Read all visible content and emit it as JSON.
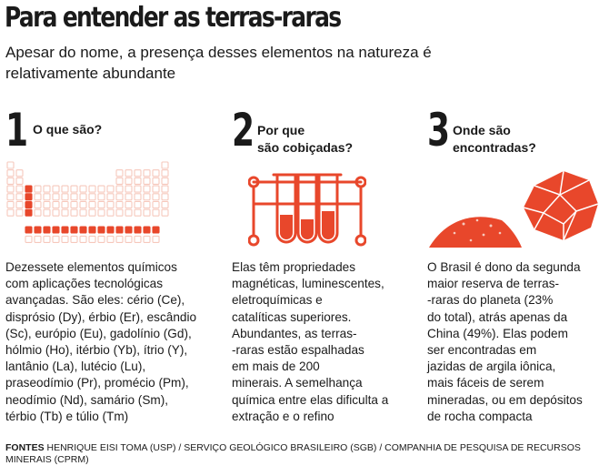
{
  "title": "Para entender as terras-raras",
  "subtitle": "Apesar do nome, a presença desses elementos na natureza é relativamente abundante",
  "sections": [
    {
      "number": "1",
      "question": "O que são?",
      "text": "Dezessete elementos químicos\ncom aplicações tecnológicas\navançadas. São eles: cério (Ce),\ndisprósio (Dy), érbio (Er), escândio\n(Sc), európio (Eu), gadolínio (Gd),\nhólmio (Ho), itérbio (Yb), ítrio (Y),\nlantânio (La), lutécio (Lu),\npraseodímio (Pr), promécio (Pm),\nneodímio (Nd), samário (Sm),\ntérbio (Tb) e túlio (Tm)",
      "icon": "periodic-table-icon"
    },
    {
      "number": "2",
      "question": "Por que\nsão cobiçadas?",
      "text": "Elas têm propriedades\nmagnéticas, luminescentes,\neletroquímicas e\ncatalíticas superiores.\nAbundantes, as terras-\n-raras estão espalhadas\nem mais de 200\nminerais. A semelhança\nquímica entre elas dificulta a\nextração e o refino",
      "icon": "test-tubes-icon"
    },
    {
      "number": "3",
      "question": "Onde são\nencontradas?",
      "text": "O Brasil é dono da segunda\nmaior reserva de terras-\n-raras do planeta (23%\ndo total), atrás apenas da\nChina (49%). Elas podem\nser encontradas em\njazidas de argila iônica,\nmais fáceis de serem\nmineradas, ou em depósitos\nde rocha compacta",
      "icon": "clay-and-rock-icon"
    }
  ],
  "sources_label": "FONTES",
  "sources_text": "HENRIQUE EISI TOMA (USP) / SERVIÇO GEOLÓGICO BRASILEIRO (SGB) / COMPANHIA DE PESQUISA DE RECURSOS MINERAIS (CPRM)",
  "colors": {
    "accent": "#e8472b",
    "accent_light": "#f6c8bc",
    "text": "#1a1a1a"
  }
}
